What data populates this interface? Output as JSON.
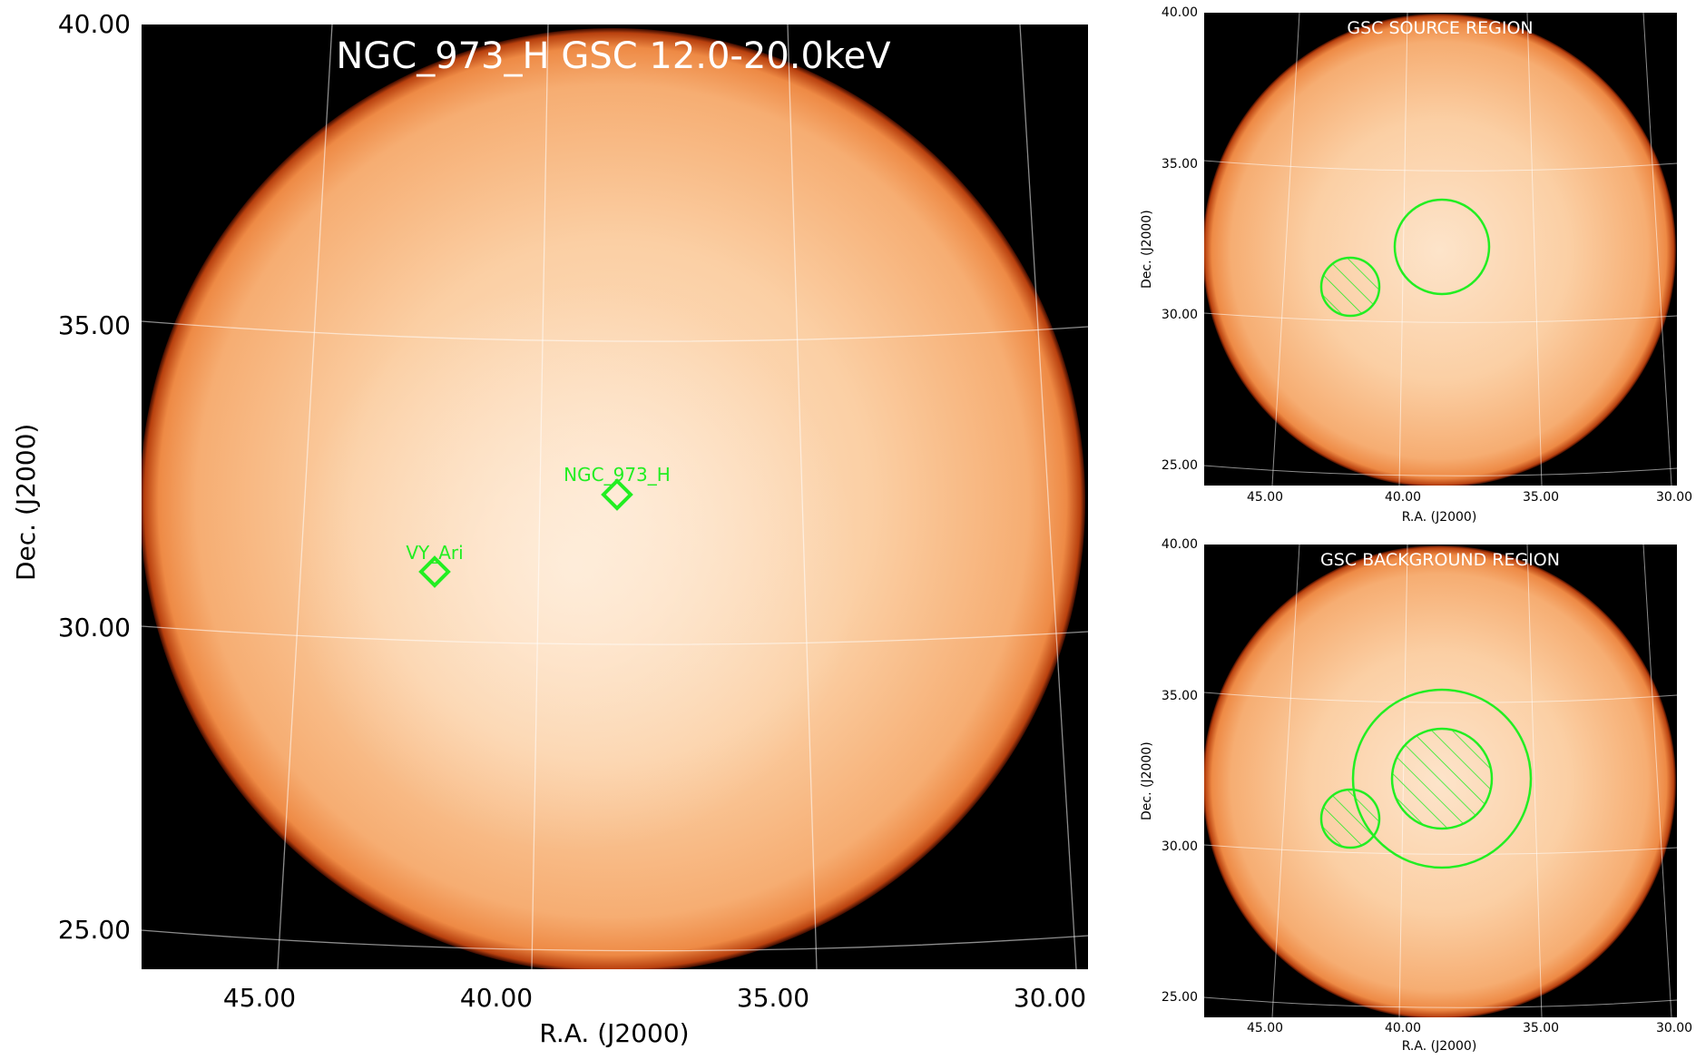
{
  "main": {
    "title": "NGC_973_H GSC 12.0-20.0keV",
    "xlabel": "R.A. (J2000)",
    "ylabel": "Dec. (J2000)",
    "xticks": [
      "45.00",
      "40.00",
      "35.00",
      "30.00"
    ],
    "yticks": [
      "40.00",
      "35.00",
      "30.00",
      "25.00"
    ],
    "sources": [
      {
        "name": "NGC_973_H"
      },
      {
        "name": "VY_Ari"
      }
    ]
  },
  "source_region": {
    "title": "GSC SOURCE REGION",
    "xlabel": "R.A. (J2000)",
    "ylabel": "Dec. (J2000)",
    "xticks": [
      "45.00",
      "40.00",
      "35.00",
      "30.00"
    ],
    "yticks": [
      "40.00",
      "35.00",
      "30.00",
      "25.00"
    ]
  },
  "background_region": {
    "title": "GSC BACKGROUND REGION",
    "xlabel": "R.A. (J2000)",
    "ylabel": "Dec. (J2000)",
    "xticks": [
      "45.00",
      "40.00",
      "35.00",
      "30.00"
    ],
    "yticks": [
      "40.00",
      "35.00",
      "30.00",
      "25.00"
    ]
  },
  "colors": {
    "marker": "#22ee22",
    "disk_center": "#fde0c4",
    "disk_edge": "#f39a52",
    "background": "#000000",
    "grid": "#ffffff"
  }
}
